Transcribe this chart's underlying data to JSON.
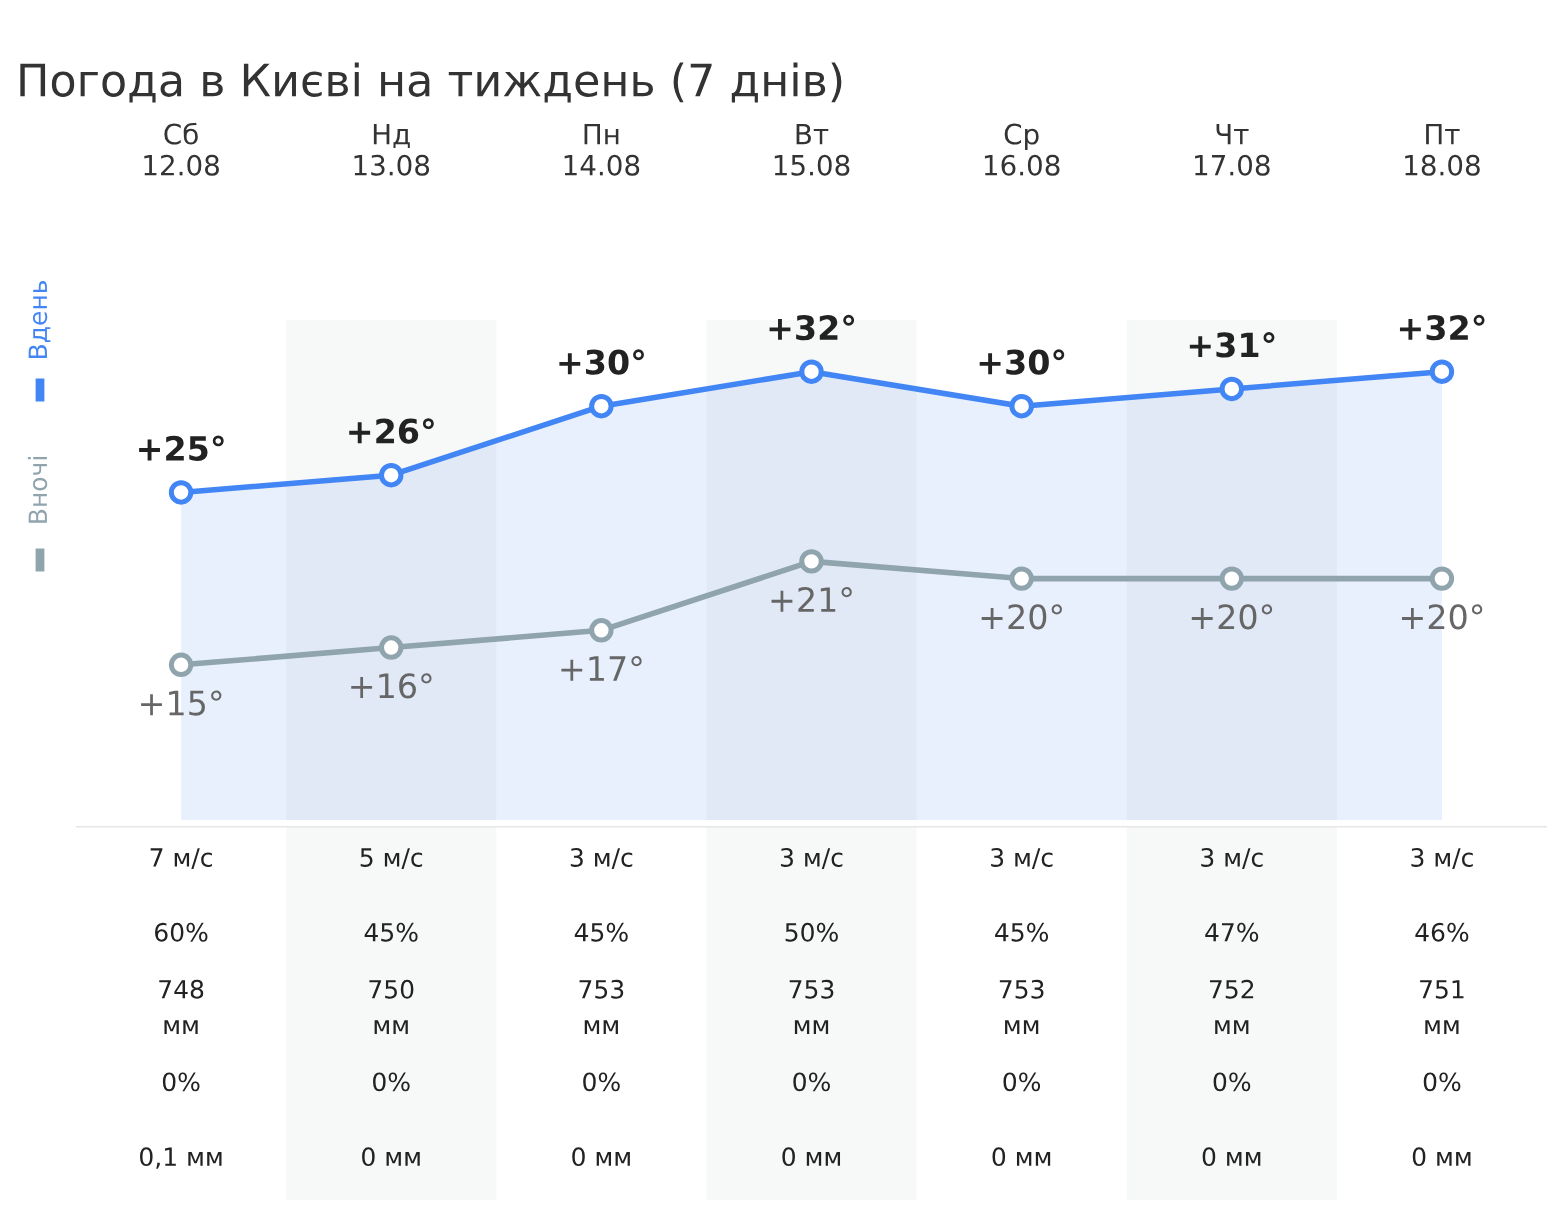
{
  "chart_data": [
    {
      "type": "line",
      "title": "Погода в Києві на тиждень (7 днів)",
      "categories": [
        "Сб\n12.08",
        "Нд\n13.08",
        "Пн\n14.08",
        "Вт\n15.08",
        "Ср\n16.08",
        "Чт\n17.08",
        "Пт\n18.08"
      ],
      "series": [
        {
          "name": "Вдень",
          "color": "#4285f4",
          "values": [
            25,
            26,
            30,
            32,
            30,
            31,
            32
          ],
          "value_labels": [
            "+25°",
            "+26°",
            "+30°",
            "+32°",
            "+30°",
            "+31°",
            "+32°"
          ]
        },
        {
          "name": "Вночі",
          "color": "#90a4ae",
          "values": [
            15,
            16,
            17,
            21,
            20,
            20,
            20
          ],
          "value_labels": [
            "+15°",
            "+16°",
            "+17°",
            "+21°",
            "+20°",
            "+20°",
            "+20°"
          ]
        }
      ],
      "marker": "circle",
      "legend": "left",
      "grid": false
    },
    {
      "type": "other",
      "categories": [
        null,
        null,
        null,
        null,
        null,
        null,
        null
      ],
      "annotations": [
        "7 м/с",
        "5 м/с",
        "3 м/с",
        "3 м/с",
        "3 м/с",
        "3 м/с",
        "3 м/с",
        "60%",
        "45%",
        "45%",
        "50%",
        "45%",
        "47%",
        "46%",
        "748\nмм",
        "750\nмм",
        "753\nмм",
        "753\nмм",
        "753\nмм",
        "752\nмм",
        "751\nмм",
        "0%",
        "0%",
        "0%",
        "0%",
        "0%",
        "0%",
        "0%",
        "0,1 мм",
        "0 мм",
        "0 мм",
        "0 мм",
        "0 мм",
        "0 мм",
        "0 мм"
      ]
    }
  ]
}
